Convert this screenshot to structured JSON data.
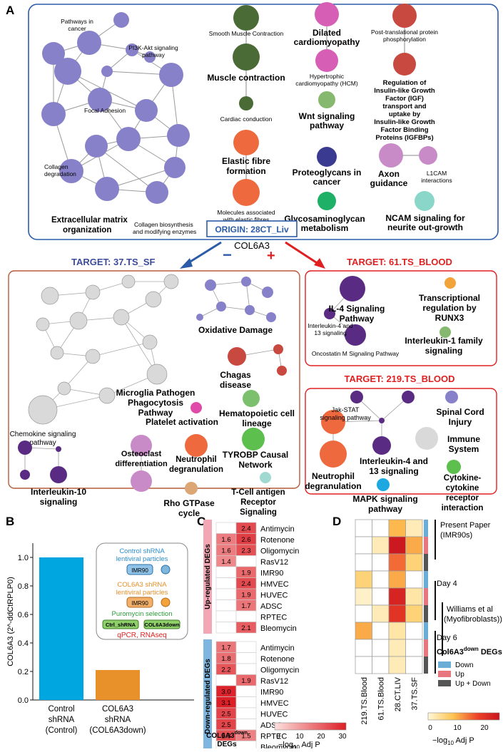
{
  "panel_letters": {
    "a": "A",
    "b": "B",
    "c": "C",
    "d": "D"
  },
  "panel_a": {
    "origin": "ORIGIN: 28CT_Liv",
    "gene": "COL6A3",
    "minus": "−",
    "plus": "+",
    "origin_clusters": {
      "ecm_main": "Extracellular matrix organization",
      "pathways_cancer": "Pathways in cancer",
      "pi3k": "PI3K-Akt signaling pathway",
      "focal": "Focal Adhesion",
      "collagen_deg": "Collagen degradation",
      "collagen_bio": "Collagen biosynthesis and modifying enzymes",
      "smooth": "Smooth Muscle Contraction",
      "muscle": "Muscle contraction",
      "cardiac": "Cardiac conduction",
      "elastic": "Elastic fibre formation",
      "molecules_elastic": "Molecules associated with elastic fibres",
      "dilated": "Dilated cardiomyopathy",
      "hcm": "Hypertrophic cardiomyopathy (HCM)",
      "wnt": "Wnt signaling pathway",
      "proteoglycans": "Proteoglycans in cancer",
      "glyco": "Glycosaminoglycan metabolism",
      "ptm": "Post-translational protein phosphorylation",
      "igf": "Regulation of Insulin-like Growth Factor (IGF) transport and uptake by Insulin-like Growth Factor Binding Proteins (IGFBPs)",
      "axon": "Axon guidance",
      "l1cam": "L1CAM interactions",
      "ncam": "NCAM signaling for neurite out-growth"
    },
    "target_sf": {
      "title": "TARGET: 37.TS_SF",
      "oxidative": "Oxidative Damage",
      "chagas": "Chagas disease",
      "microglia": "Microglia Pathogen Phagocytosis Pathway",
      "platelet": "Platelet activation",
      "hemato": "Hematopoietic cell lineage",
      "chemokine": "Chemokine signaling pathway",
      "osteoclast": "Osteoclast differentiation",
      "neutrophil": "Neutrophil degranulation",
      "tyrobp": "TYROBP Causal Network",
      "il10": "Interleukin-10 signaling",
      "rho": "Rho GTPase cycle",
      "tcell": "T-Cell antigen Receptor Signaling"
    },
    "target_blood61": {
      "title": "TARGET:  61.TS_BLOOD",
      "il4": "IL-4 Signaling Pathway",
      "il4_13": "Interleukin-4 and 13 signaling",
      "oncostatin": "Oncostatin M Signaling Pathway",
      "runx3": "Transcriptional regulation by RUNX3",
      "il1": "Interleukin-1 family signaling"
    },
    "target_blood219": {
      "title": "TARGET: 219.TS_BLOOD",
      "jak": "Jak-STAT signaling pathway",
      "neutrophil": "Neutrophil degranulation",
      "spinal": "Spinal Cord Injury",
      "immune": "Immune System",
      "il4_13": "Interleukin-4 and 13 signaling",
      "cytokine": "Cytokine-cytokine receptor interaction",
      "mapk": "MAPK signaling pathway"
    }
  },
  "panel_b": {
    "ylabel": "COL6A3 (2^-ddCtRPLP0)",
    "inset": {
      "control": "Control shRNA lentiviral particles",
      "col6a3": "COL6A3 shRNA lentiviral particles",
      "cell": "IMR90",
      "puro": "Puromycin selection",
      "ctrl_dish": "Ctrl_shRNA",
      "col_dish": "COL6A3down",
      "assay": "qPCR, RNAseq"
    }
  },
  "panel_c": {
    "up_group": "Up-regulated DEGs",
    "down_group": "Down-regulated DEGs",
    "col_down": "Down",
    "col_up": "Up",
    "xlabel1": "COL6A3",
    "xlabel_sup": "down",
    "xlabel2": "DEGs",
    "cbar_label": "−log",
    "cbar_sub": "10",
    "cbar_tail": " Adj P",
    "cbar_ticks": [
      "0",
      "10",
      "20",
      "30"
    ]
  },
  "panel_d": {
    "columns": [
      "219.TS.Blood",
      "61.TS.Blood",
      "28.CT.LIV",
      "37.TS.SF"
    ],
    "present_paper": "Present Paper (IMR90s)",
    "day4": "Day 4",
    "williams": "Williams et al (Myofibroblasts))",
    "day6": "Day 6",
    "legend_title": "Col6A3",
    "legend_sup": "down",
    "legend_tail": " DEGs",
    "legend_items": [
      {
        "label": "Down",
        "color": "#6aaed6"
      },
      {
        "label": "Up",
        "color": "#e8767e"
      },
      {
        "label": "Up + Down",
        "color": "#555555"
      }
    ],
    "cbar_label": "−log",
    "cbar_sub": "10",
    "cbar_tail": " Adj P",
    "cbar_ticks": [
      "0",
      "10",
      "20"
    ]
  },
  "chart_data": [
    {
      "type": "bar",
      "categories": [
        "Control shRNA (Control)",
        "COL6A3 shRNA (COL6A3down)"
      ],
      "values": [
        1.0,
        0.21
      ],
      "colors": [
        "#00a6e0",
        "#e8902a"
      ],
      "ylim": [
        0,
        1.1
      ],
      "yticks": [
        "0.0",
        "0.2",
        "0.4",
        "0.6",
        "0.8",
        "1.0"
      ],
      "ylabel": "COL6A3 (2^-ddCtRPLP0)",
      "category_lines": [
        [
          "Control",
          "shRNA",
          "(Control)"
        ],
        [
          "COL6A3",
          "shRNA",
          "(COL6A3down)"
        ]
      ]
    },
    {
      "type": "heatmap",
      "rows": [
        "Antimycin",
        "Rotenone",
        "Oligomycin",
        "RasV12",
        "IMR90",
        "HMVEC",
        "HUVEC",
        "ADSC",
        "RPTEC",
        "Bleomycin"
      ],
      "columns": [
        "Down",
        "Up"
      ],
      "groups": [
        {
          "name": "Up-regulated DEGs",
          "down": [
            null,
            1.6,
            1.6,
            1.4,
            null,
            null,
            null,
            null,
            null,
            null
          ],
          "up": [
            2.4,
            2.6,
            2.3,
            null,
            1.9,
            2.4,
            1.9,
            1.7,
            null,
            2.1
          ]
        },
        {
          "name": "Down-regulated DEGs",
          "down": [
            1.7,
            1.8,
            2.2,
            null,
            3.0,
            3.1,
            2.5,
            2.5,
            2.3,
            null
          ],
          "up": [
            null,
            null,
            null,
            1.9,
            null,
            null,
            null,
            null,
            1.5,
            null
          ]
        }
      ],
      "colorbar": {
        "label": "−log10 Adj P",
        "ticks": [
          0,
          10,
          20,
          30
        ]
      }
    },
    {
      "type": "heatmap",
      "columns": [
        "219.TS.Blood",
        "61.TS.Blood",
        "28.CT.LIV",
        "37.TS.SF"
      ],
      "row_categories": [
        "Down",
        "Up",
        "Up + Down",
        "Down",
        "Up",
        "Up + Down",
        "Down",
        "Up",
        "Up + Down"
      ],
      "values": [
        [
          0,
          0,
          9,
          2
        ],
        [
          0,
          2,
          24,
          10
        ],
        [
          0,
          0,
          14,
          6
        ],
        [
          6,
          0,
          10,
          0
        ],
        [
          1,
          0,
          22,
          3
        ],
        [
          0,
          2,
          19,
          6
        ],
        [
          10,
          0,
          3,
          0
        ],
        [
          0,
          0,
          2,
          0
        ],
        [
          0,
          0,
          2,
          0
        ]
      ],
      "colorbar": {
        "label": "−log10 Adj P",
        "ticks": [
          0,
          10,
          20
        ]
      }
    }
  ]
}
